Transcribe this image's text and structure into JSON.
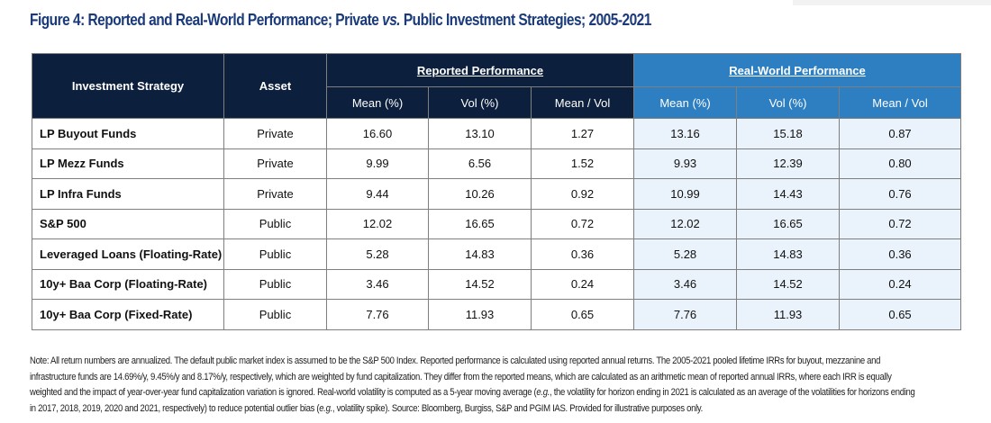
{
  "title": {
    "prefix": "Figure 4: Reported and Real-World Performance; Private ",
    "vs": "vs.",
    "suffix": " Public Investment Strategies; 2005-2021"
  },
  "table": {
    "col_strategy": "Investment Strategy",
    "col_asset": "Asset",
    "group_reported_underlined": "Reported",
    "group_reported_rest": " Performance",
    "group_realworld_underlined": "Real-World",
    "group_realworld_rest": " Performance",
    "sub_headers": [
      "Mean (%)",
      "Vol (%)",
      "Mean / Vol",
      "Mean (%)",
      "Vol (%)",
      "Mean / Vol"
    ],
    "rows": [
      {
        "strategy": "LP Buyout Funds",
        "asset": "Private",
        "rep_mean": "16.60",
        "rep_vol": "13.10",
        "rep_ratio": "1.27",
        "rw_mean": "13.16",
        "rw_vol": "15.18",
        "rw_ratio": "0.87"
      },
      {
        "strategy": "LP Mezz Funds",
        "asset": "Private",
        "rep_mean": "9.99",
        "rep_vol": "6.56",
        "rep_ratio": "1.52",
        "rw_mean": "9.93",
        "rw_vol": "12.39",
        "rw_ratio": "0.80"
      },
      {
        "strategy": "LP Infra Funds",
        "asset": "Private",
        "rep_mean": "9.44",
        "rep_vol": "10.26",
        "rep_ratio": "0.92",
        "rw_mean": "10.99",
        "rw_vol": "14.43",
        "rw_ratio": "0.76"
      },
      {
        "strategy": "S&P 500",
        "asset": "Public",
        "rep_mean": "12.02",
        "rep_vol": "16.65",
        "rep_ratio": "0.72",
        "rw_mean": "12.02",
        "rw_vol": "16.65",
        "rw_ratio": "0.72"
      },
      {
        "strategy": "Leveraged Loans (Floating-Rate)",
        "asset": "Public",
        "rep_mean": "5.28",
        "rep_vol": "14.83",
        "rep_ratio": "0.36",
        "rw_mean": "5.28",
        "rw_vol": "14.83",
        "rw_ratio": "0.36"
      },
      {
        "strategy": "10y+ Baa Corp (Floating-Rate)",
        "asset": "Public",
        "rep_mean": "3.46",
        "rep_vol": "14.52",
        "rep_ratio": "0.24",
        "rw_mean": "3.46",
        "rw_vol": "14.52",
        "rw_ratio": "0.24"
      },
      {
        "strategy": "10y+ Baa Corp (Fixed-Rate)",
        "asset": "Public",
        "rep_mean": "7.76",
        "rep_vol": "11.93",
        "rep_ratio": "0.65",
        "rw_mean": "7.76",
        "rw_vol": "11.93",
        "rw_ratio": "0.65"
      }
    ]
  },
  "note": {
    "line1": "Note: All return numbers are annualized. The default public market index is assumed to be the S&P 500 Index. Reported performance is calculated using reported annual returns. The 2005-2021 pooled lifetime IRRs for buyout, mezzanine and",
    "line2": "infrastructure funds are 14.69%/y, 9.45%/y and 8.17%/y, respectively, which are weighted by fund capitalization. They differ from the reported means, which are calculated as an arithmetic mean of reported annual IRRs, where each IRR is equally",
    "line3_a": "weighted and the impact of year-over-year fund capitalization variation is ignored. Real-world volatility is computed as a 5-year moving average (",
    "line3_eg": "e.g.",
    "line3_b": ", the volatility for horizon ending in 2021 is calculated as an average of the volatilities for horizons ending",
    "line4_a": "in 2017, 2018, 2019, 2020 and 2021, respectively) to reduce potential outlier bias (",
    "line4_eg": "e.g.",
    "line4_b": ", volatility spike). Source: Bloomberg, Burgiss, S&P and PGIM IAS. Provided for illustrative purposes only."
  },
  "colors": {
    "title": "#1a3a7a",
    "navy_header": "#0c1f3d",
    "blue_header": "#2e7fc2",
    "realworld_cell_bg": "#eaf3fb"
  }
}
